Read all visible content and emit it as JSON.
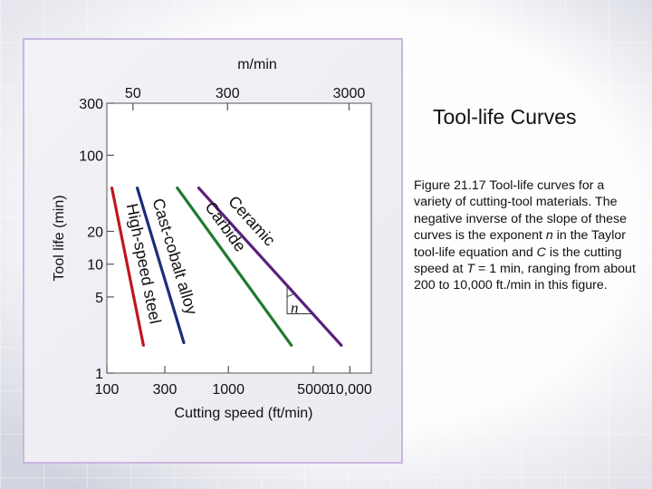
{
  "slide": {
    "title": "Tool-life Curves",
    "caption_parts": [
      "Figure 21.17  Tool-life curves for a variety of cutting-tool materials. The negative inverse of the slope of these curves is the exponent ",
      "n",
      " in the Taylor tool-life equation and ",
      "C",
      " is the cutting speed at ",
      "T",
      " = 1 min, ranging from about 200 to 10,000 ft./min in this figure."
    ]
  },
  "chart_data": {
    "type": "line",
    "xscale": "log",
    "yscale": "log",
    "xlabel": "Cutting speed (ft/min)",
    "ylabel": "Tool life (min)",
    "top_axis_label": "m/min",
    "xlim": [
      100,
      15000
    ],
    "ylim": [
      1,
      300
    ],
    "x_ticks": [
      {
        "value": 100,
        "label": "100"
      },
      {
        "value": 300,
        "label": "300"
      },
      {
        "value": 1000,
        "label": "1000"
      },
      {
        "value": 5000,
        "label": "5000"
      },
      {
        "value": 10000,
        "label": "10,000"
      }
    ],
    "top_ticks": [
      {
        "value_ft_min": 164,
        "label": "50"
      },
      {
        "value_ft_min": 984,
        "label": "300"
      },
      {
        "value_ft_min": 9843,
        "label": "3000"
      }
    ],
    "y_ticks": [
      {
        "value": 1,
        "label": "1"
      },
      {
        "value": 5,
        "label": "5"
      },
      {
        "value": 10,
        "label": "10"
      },
      {
        "value": 20,
        "label": "20"
      },
      {
        "value": 100,
        "label": "100"
      },
      {
        "value": 300,
        "label": "300"
      }
    ],
    "slope_marker_label": "n",
    "grid": false,
    "series": [
      {
        "name": "High-speed steel",
        "color": "#c0161d",
        "x": [
          110,
          200
        ],
        "y": [
          50,
          1.8
        ]
      },
      {
        "name": "Cast-cobalt alloy",
        "color": "#1a2d7a",
        "x": [
          178,
          430
        ],
        "y": [
          50,
          1.9
        ]
      },
      {
        "name": "Carbide",
        "color": "#1f7a2f",
        "x": [
          380,
          3300
        ],
        "y": [
          50,
          1.8
        ]
      },
      {
        "name": "Ceramic",
        "color": "#5b1f7c",
        "x": [
          570,
          8500
        ],
        "y": [
          50,
          1.8
        ]
      }
    ]
  }
}
